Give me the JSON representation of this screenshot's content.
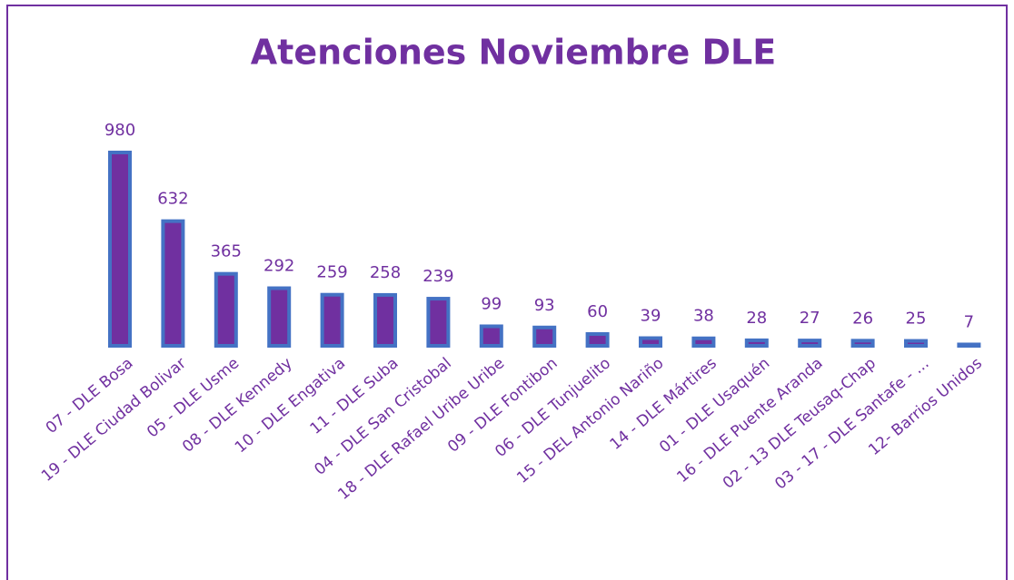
{
  "chart_data": {
    "type": "bar",
    "title": "Atenciones Noviembre DLE",
    "categories": [
      "07 - DLE Bosa",
      "19 - DLE Ciudad Bolivar",
      "05 - DLE Usme",
      "08 - DLE Kennedy",
      "10 - DLE Engativa",
      "11 - DLE Suba",
      "04 - DLE San Cristobal",
      "18 - DLE Rafael Uribe Uribe",
      "09 - DLE Fontibon",
      "06 - DLE Tunjuelito",
      "15 - DEL Antonio Nariño",
      "14 - DLE Mártires",
      "01 - DLE Usaquén",
      "16 - DLE Puente Aranda",
      "02 - 13 DLE Teusaq-Chap",
      "03 - 17 - DLE Santafe - ...",
      "12- Barrios Unidos"
    ],
    "values": [
      980,
      632,
      365,
      292,
      259,
      258,
      239,
      99,
      93,
      60,
      39,
      38,
      28,
      27,
      26,
      25,
      7
    ],
    "color": "#7030a0",
    "edge_color": "#4472c4"
  }
}
